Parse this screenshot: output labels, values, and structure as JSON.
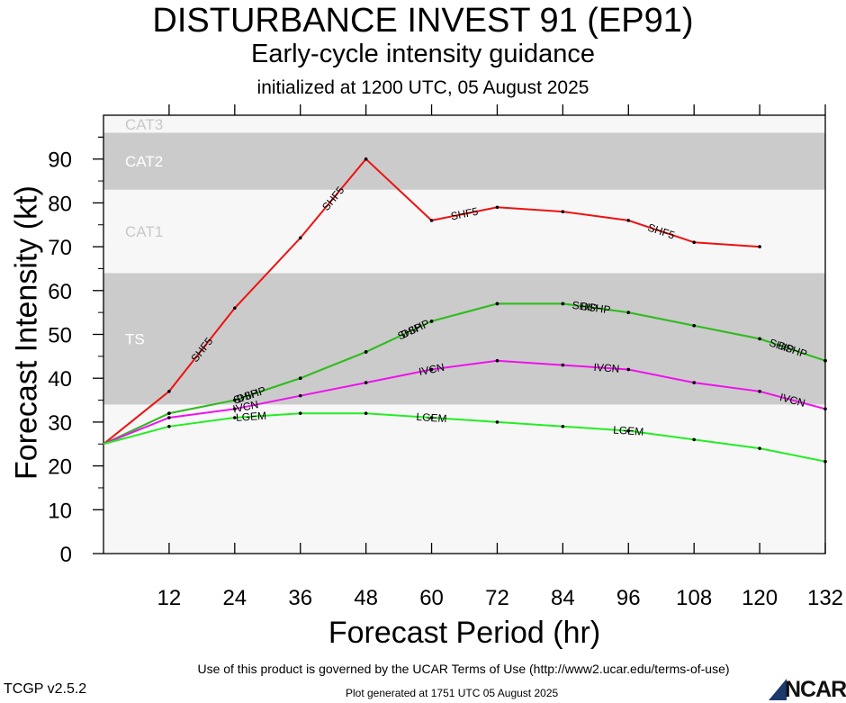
{
  "title": "DISTURBANCE INVEST 91 (EP91)",
  "subtitle": "Early-cycle intensity guidance",
  "init_line": "initialized at 1200 UTC, 05 August 2025",
  "footer": {
    "terms": "Use of this product is governed by the UCAR Terms of Use (http://www2.ucar.edu/terms-of-use)",
    "version": "TCGP v2.5.2",
    "generated": "Plot generated at 1751 UTC   05 August 2025",
    "logo": "NCAR"
  },
  "chart_data": {
    "type": "line",
    "title": "DISTURBANCE INVEST 91 (EP91)",
    "xlabel": "Forecast Period (hr)",
    "ylabel": "Forecast Intensity (kt)",
    "xlim": [
      0,
      132
    ],
    "ylim": [
      0,
      100
    ],
    "x_ticks": [
      12,
      24,
      36,
      48,
      60,
      72,
      84,
      96,
      108,
      120,
      132
    ],
    "y_ticks": [
      0,
      10,
      20,
      30,
      40,
      50,
      60,
      70,
      80,
      90
    ],
    "bands": [
      {
        "label": "TS",
        "from": 34,
        "to": 64,
        "color": "#cbcbcb"
      },
      {
        "label": "CAT1",
        "from": 64,
        "to": 83,
        "color": "#f7f7f7"
      },
      {
        "label": "CAT2",
        "from": 83,
        "to": 96,
        "color": "#cbcbcb"
      },
      {
        "label": "CAT3",
        "from": 96,
        "to": 100,
        "color": "#f7f7f7"
      }
    ],
    "below_band_color": "#f7f7f7",
    "series": [
      {
        "name": "SHF5",
        "color": "#ee1111",
        "x": [
          0,
          12,
          24,
          36,
          48,
          60,
          72,
          84,
          96,
          108,
          120
        ],
        "y": [
          25,
          37,
          56,
          72,
          90,
          76,
          79,
          78,
          76,
          71,
          70
        ],
        "labels_at": [
          18,
          42,
          66,
          102
        ]
      },
      {
        "name": "DSHP",
        "color": "#33bb22",
        "x": [
          0,
          12,
          24,
          36,
          48,
          60,
          72,
          84,
          96,
          108,
          120,
          132
        ],
        "y": [
          25,
          32,
          35,
          40,
          46,
          53,
          57,
          57,
          55,
          52,
          49,
          44
        ],
        "labels_at": [
          27,
          57,
          90,
          126
        ]
      },
      {
        "name": "SHIP",
        "color": "#33bb22",
        "x": [
          0,
          12,
          24,
          36,
          48,
          60,
          72,
          84,
          96,
          108,
          120,
          132
        ],
        "y": [
          25,
          32,
          35,
          40,
          46,
          53,
          57,
          57,
          55,
          52,
          49,
          44
        ],
        "labels_at": [
          26,
          56,
          88,
          124
        ]
      },
      {
        "name": "IVCN",
        "color": "#ee11ee",
        "x": [
          0,
          12,
          24,
          36,
          48,
          60,
          72,
          84,
          96,
          108,
          120,
          132
        ],
        "y": [
          25,
          31,
          33,
          36,
          39,
          42,
          44,
          43,
          42,
          39,
          37,
          33
        ],
        "labels_at": [
          26,
          60,
          92,
          126
        ]
      },
      {
        "name": "LGEM",
        "color": "#22ee22",
        "x": [
          0,
          12,
          24,
          36,
          48,
          60,
          72,
          84,
          96,
          108,
          120,
          132
        ],
        "y": [
          25,
          29,
          31,
          32,
          32,
          31,
          30,
          29,
          28,
          26,
          24,
          21
        ],
        "labels_at": [
          27,
          60,
          96
        ]
      }
    ]
  }
}
